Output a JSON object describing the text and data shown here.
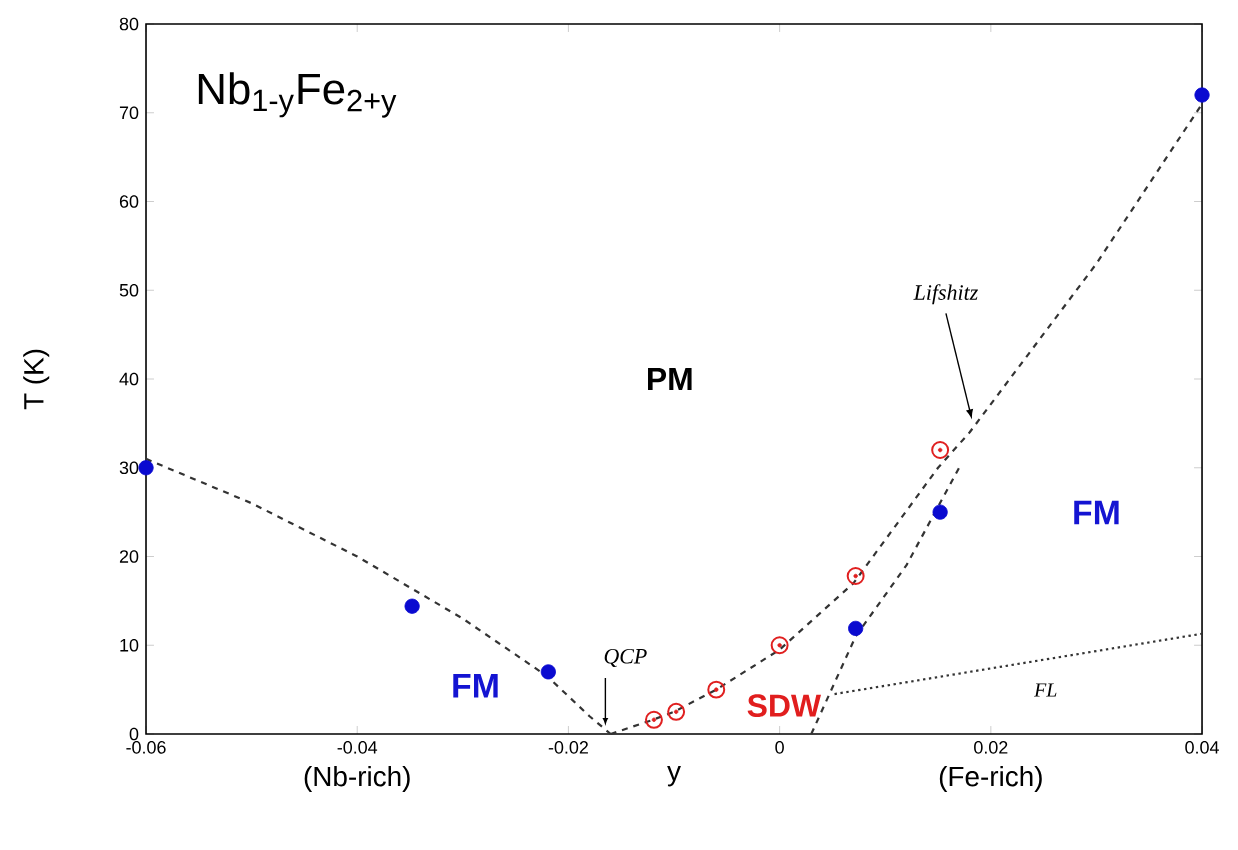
{
  "chart_data": {
    "type": "scatter",
    "title": "Nb$_{1-y}$Fe$_{2+y}$",
    "xlabel": "y",
    "ylabel": "T (K)",
    "xlim": [
      -0.06,
      0.04
    ],
    "xticks": [
      -0.06,
      -0.04,
      -0.02,
      0,
      0.02,
      0.04
    ],
    "ylim": [
      0,
      80
    ],
    "yticks": [
      0,
      10,
      20,
      30,
      40,
      50,
      60,
      70,
      80
    ],
    "grid": false,
    "series": [
      {
        "type": "line",
        "color": "#333333",
        "line_style": "dashed",
        "marker": "none",
        "x": [
          -0.06,
          -0.05,
          -0.04,
          -0.03,
          -0.022,
          -0.018,
          -0.016
        ],
        "values": [
          31,
          26,
          20,
          13,
          6.5,
          2,
          0
        ]
      },
      {
        "type": "line",
        "color": "#333333",
        "line_style": "dashed",
        "marker": "none",
        "x": [
          -0.016,
          -0.012,
          -0.01,
          -0.006,
          0,
          0.007,
          0.015,
          0.018,
          0.03,
          0.04
        ],
        "values": [
          0,
          1.6,
          2.5,
          5,
          9.5,
          17,
          30,
          34,
          53,
          71
        ]
      },
      {
        "type": "line",
        "color": "#333333",
        "line_style": "dashed",
        "marker": "none",
        "x": [
          0.003,
          0.0072,
          0.012,
          0.017
        ],
        "values": [
          0,
          11,
          19,
          30
        ]
      },
      {
        "type": "line",
        "color": "#333333",
        "line_style": "dotted",
        "marker": "none",
        "x": [
          0.0052,
          0.04
        ],
        "values": [
          4.5,
          11.3
        ]
      },
      {
        "type": "scatter",
        "color": "#0a0ad0",
        "marker": "circle",
        "x": [
          -0.06,
          -0.0348,
          -0.0219,
          0.0072,
          0.0152,
          0.04
        ],
        "values": [
          30,
          14.4,
          7,
          11.9,
          25,
          72
        ]
      },
      {
        "type": "scatter",
        "color": "#e02020",
        "marker": "circle",
        "x": [
          -0.0119,
          -0.0098,
          -0.006,
          0,
          0.0072,
          0.0152
        ],
        "values": [
          1.6,
          2.5,
          5,
          10,
          17.8,
          32
        ]
      }
    ],
    "annotations": [
      "PM",
      "FM",
      "FM",
      "SDW",
      {
        "text": "QCP",
        "x": -0.0165,
        "y": 0
      },
      {
        "text": "Lifshitz",
        "x": 0.0184,
        "y": 35
      },
      "FL",
      "(Nb-rich)",
      "(Fe-rich)"
    ]
  }
}
